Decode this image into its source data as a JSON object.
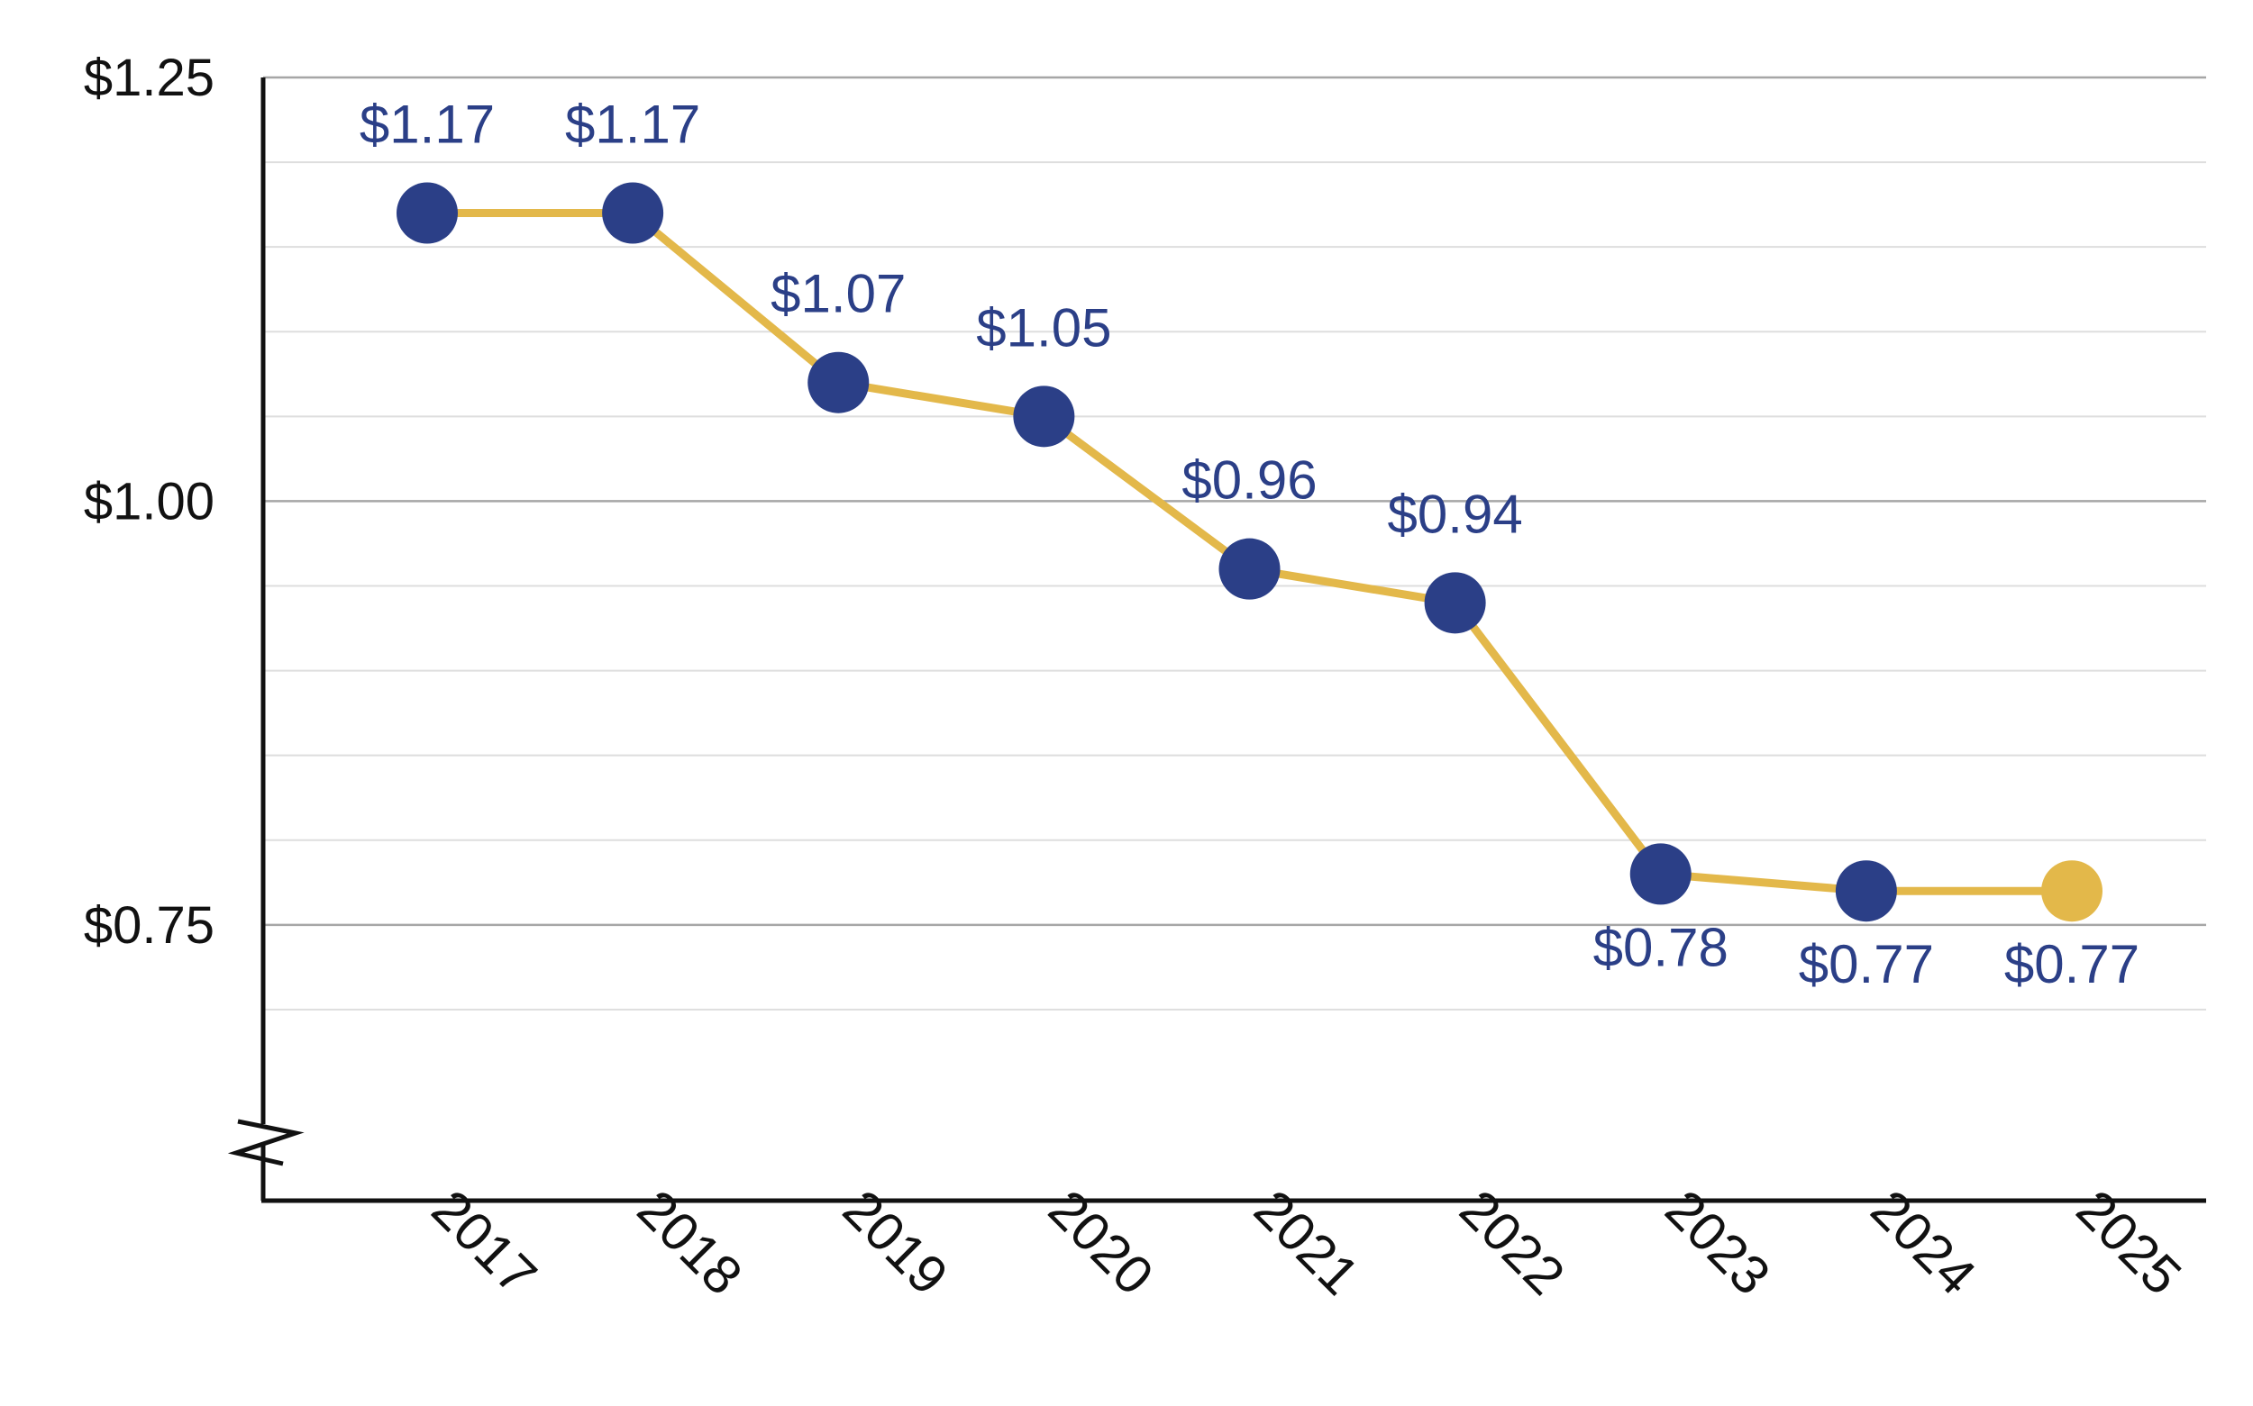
{
  "chart_data": {
    "type": "line",
    "categories": [
      "2017",
      "2018",
      "2019",
      "2020",
      "2021",
      "2022",
      "2023",
      "2024",
      "2025"
    ],
    "values": [
      1.17,
      1.17,
      1.07,
      1.05,
      0.96,
      0.94,
      0.78,
      0.77,
      0.77
    ],
    "data_labels": [
      "$1.17",
      "$1.17",
      "$1.07",
      "$1.05",
      "$0.96",
      "$0.94",
      "$0.78",
      "$0.77",
      "$0.77"
    ],
    "ylim": [
      0.65,
      1.25
    ],
    "y_ticks": [
      {
        "value": 1.25,
        "label": "$1.25"
      },
      {
        "value": 1.0,
        "label": "$1.00"
      },
      {
        "value": 0.75,
        "label": "$0.75"
      }
    ],
    "minor_grid_step": 0.05,
    "y_axis_break": true,
    "grid": true,
    "title": "",
    "xlabel": "",
    "ylabel": "",
    "colors": {
      "line": "#e3b84a",
      "marker": "#2b3f87",
      "highlight_marker": "#e3b84a",
      "label": "#2b3f87",
      "major_grid": "#a6a6a6",
      "minor_grid": "#dedede",
      "axis": "#111111"
    },
    "highlight_index": 8
  }
}
